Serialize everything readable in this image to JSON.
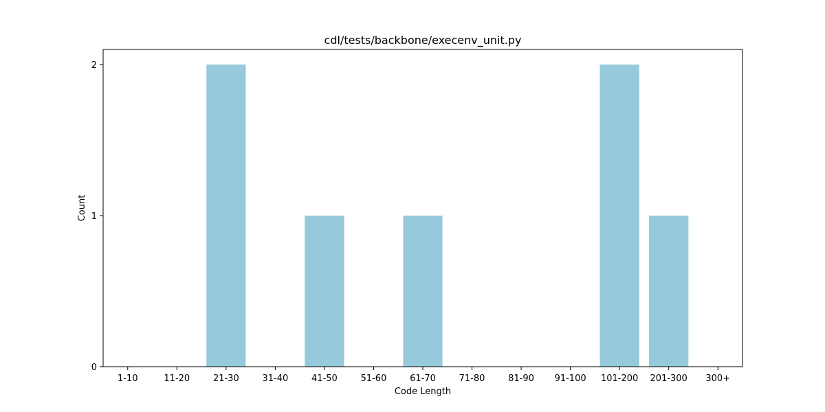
{
  "chart_data": {
    "type": "bar",
    "title": "cdl/tests/backbone/execenv_unit.py",
    "xlabel": "Code Length",
    "ylabel": "Count",
    "categories": [
      "1-10",
      "11-20",
      "21-30",
      "31-40",
      "41-50",
      "51-60",
      "61-70",
      "71-80",
      "81-90",
      "91-100",
      "101-200",
      "201-300",
      "300+"
    ],
    "values": [
      0,
      0,
      2,
      0,
      1,
      0,
      1,
      0,
      0,
      0,
      2,
      1,
      0
    ],
    "ylim": [
      0,
      2.1
    ],
    "yticks": [
      0,
      1,
      2
    ],
    "bar_color": "#96c9dc",
    "grid": false,
    "legend": "none"
  }
}
